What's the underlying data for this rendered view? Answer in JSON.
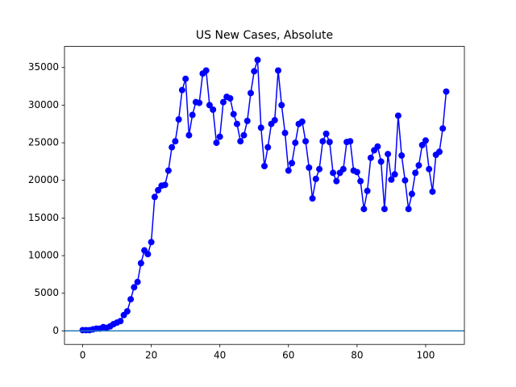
{
  "chart_data": {
    "type": "line",
    "title": "US New Cases, Absolute",
    "x": [
      0,
      1,
      2,
      3,
      4,
      5,
      6,
      7,
      8,
      9,
      10,
      11,
      12,
      13,
      14,
      15,
      16,
      17,
      18,
      19,
      20,
      21,
      22,
      23,
      24,
      25,
      26,
      27,
      28,
      29,
      30,
      31,
      32,
      33,
      34,
      35,
      36,
      37,
      38,
      39,
      40,
      41,
      42,
      43,
      44,
      45,
      46,
      47,
      48,
      49,
      50,
      51,
      52,
      53,
      54,
      55,
      56,
      57,
      58,
      59,
      60,
      61,
      62,
      63,
      64,
      65,
      66,
      67,
      68,
      69,
      70,
      71,
      72,
      73,
      74,
      75,
      76,
      77,
      78,
      79,
      80,
      81,
      82,
      83,
      84,
      85,
      86,
      87,
      88,
      89,
      90,
      91,
      92,
      93,
      94,
      95,
      96,
      97,
      98,
      99,
      100,
      101,
      102,
      103,
      104,
      105,
      106
    ],
    "series": [
      {
        "color": "#0000ff",
        "values": [
          100,
          100,
          100,
          200,
          300,
          300,
          500,
          400,
          600,
          900,
          1100,
          1300,
          2100,
          2600,
          4200,
          5800,
          6500,
          9000,
          10700,
          10200,
          11800,
          17800,
          18700,
          19300,
          19400,
          21300,
          24400,
          25200,
          28100,
          32000,
          33500,
          26000,
          28700,
          30400,
          30300,
          34200,
          34600,
          30000,
          29400,
          25000,
          25800,
          30400,
          31100,
          30900,
          28800,
          27500,
          25200,
          26000,
          27900,
          31600,
          34500,
          36000,
          27000,
          21900,
          24400,
          27500,
          28000,
          34600,
          30000,
          26300,
          21300,
          22300,
          25000,
          27500,
          27800,
          25200,
          21700,
          17600,
          20200,
          21500,
          25200,
          26200,
          25100,
          21000,
          19900,
          21000,
          21500,
          25100,
          25200,
          21300,
          21100,
          19900,
          16200,
          18600,
          23000,
          24000,
          24500,
          22500,
          16200,
          23500,
          20100,
          20800,
          28600,
          23300,
          20000,
          16200,
          18200,
          21000,
          22000,
          24700,
          25300,
          21500,
          18500,
          23400,
          23800,
          26900,
          31800
        ]
      }
    ],
    "hline": {
      "value": 0,
      "color": "#1f77b4"
    },
    "xlim": [
      -5.3,
      111.3
    ],
    "ylim": [
      -1800,
      37800
    ],
    "xticks": [
      0,
      20,
      40,
      60,
      80,
      100
    ],
    "yticks": [
      0,
      5000,
      10000,
      15000,
      20000,
      25000,
      30000,
      35000
    ]
  }
}
